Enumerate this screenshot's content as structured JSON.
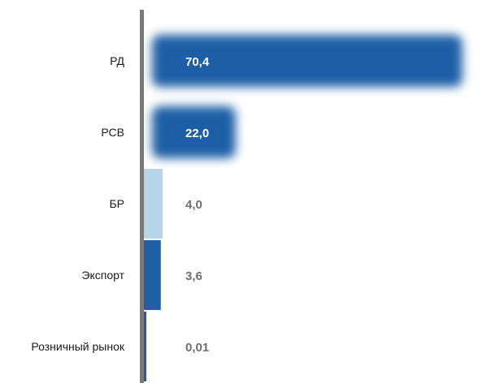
{
  "chart_data": {
    "type": "bar",
    "orientation": "horizontal",
    "categories": [
      "РД",
      "РСВ",
      "БР",
      "Экспорт",
      "Розничный рынок"
    ],
    "values": [
      70.4,
      22.0,
      4.0,
      3.6,
      0.01
    ],
    "value_labels": [
      "70,4",
      "22,0",
      "4,0",
      "3,6",
      "0,01"
    ],
    "title": "",
    "xlabel": "",
    "ylabel": "",
    "xlim": [
      0,
      76
    ],
    "grid": false,
    "legend": "none",
    "bar_colors": [
      "#1f5fa6",
      "#1f5fa6",
      "#b8d4e8",
      "#1f5fa6",
      "#1f5fa6"
    ],
    "value_label_colors": [
      "#ffffff",
      "#ffffff",
      "#6e6e6e",
      "#6e6e6e",
      "#6e6e6e"
    ],
    "bar_glow": [
      true,
      true,
      false,
      false,
      false
    ],
    "axis_color": "#7a7a7a"
  }
}
